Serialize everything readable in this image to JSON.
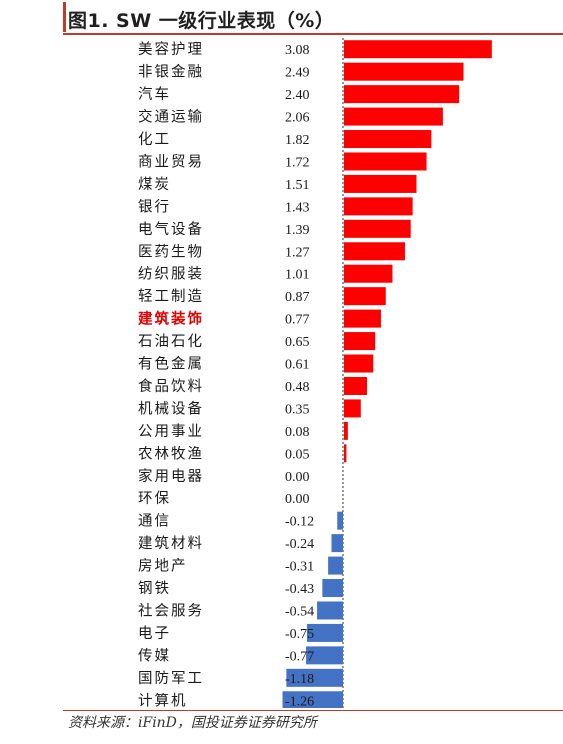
{
  "title": "图1. SW 一级行业表现（%）",
  "source": "资料来源：iFinD，国投证券证券研究所",
  "colors": {
    "positive": "#ff0000",
    "negative": "#4472c4",
    "highlight": "#e60000",
    "text": "#1a1a1a"
  },
  "chart_data": {
    "type": "bar",
    "orientation": "horizontal",
    "highlight_category": "建筑装饰",
    "categories": [
      "美容护理",
      "非银金融",
      "汽车",
      "交通运输",
      "化工",
      "商业贸易",
      "煤炭",
      "银行",
      "电气设备",
      "医药生物",
      "纺织服装",
      "轻工制造",
      "建筑装饰",
      "石油石化",
      "有色金属",
      "食品饮料",
      "机械设备",
      "公用事业",
      "农林牧渔",
      "家用电器",
      "环保",
      "通信",
      "建筑材料",
      "房地产",
      "钢铁",
      "社会服务",
      "电子",
      "传媒",
      "国防军工",
      "计算机"
    ],
    "values": [
      3.08,
      2.49,
      2.4,
      2.06,
      1.82,
      1.72,
      1.51,
      1.43,
      1.39,
      1.27,
      1.01,
      0.87,
      0.77,
      0.65,
      0.61,
      0.48,
      0.35,
      0.08,
      0.05,
      0.0,
      0.0,
      -0.12,
      -0.24,
      -0.31,
      -0.43,
      -0.54,
      -0.75,
      -0.77,
      -1.18,
      -1.26
    ],
    "value_labels": [
      "3.08",
      "2.49",
      "2.40",
      "2.06",
      "1.82",
      "1.72",
      "1.51",
      "1.43",
      "1.39",
      "1.27",
      "1.01",
      "0.87",
      "0.77",
      "0.65",
      "0.61",
      "0.48",
      "0.35",
      "0.08",
      "0.05",
      "0.00",
      "0.00",
      "-0.12",
      "-0.24",
      "-0.31",
      "-0.43",
      "-0.54",
      "-0.75",
      "-0.77",
      "-1.18",
      "-1.26"
    ],
    "xlim": [
      -1.3,
      3.2
    ]
  }
}
